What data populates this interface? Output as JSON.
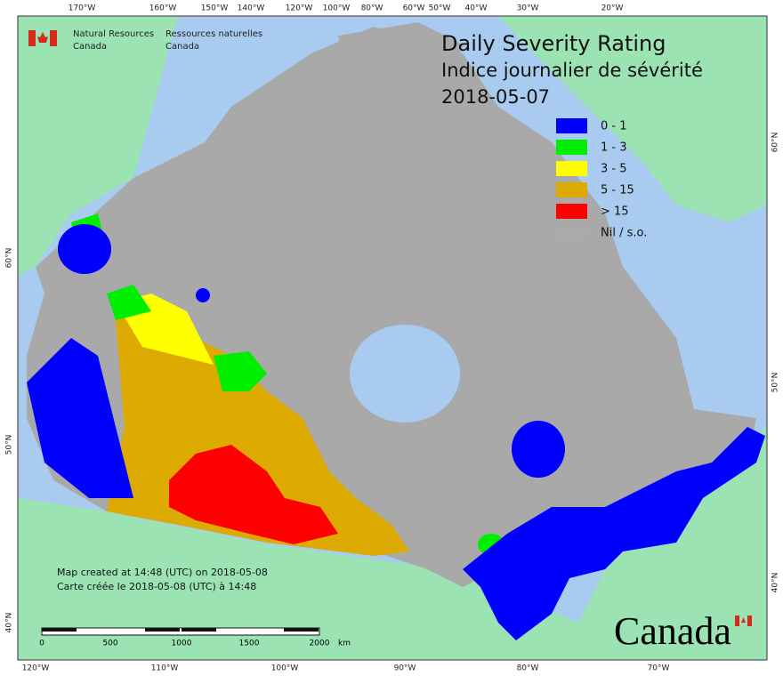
{
  "header": {
    "agency_en": [
      "Natural Resources",
      "Canada"
    ],
    "agency_fr": [
      "Ressources naturelles",
      "Canada"
    ]
  },
  "title": [
    "Daily Severity Rating",
    "Indice journalier de sévérité",
    "2018-05-07"
  ],
  "legend": [
    {
      "label": "0 - 1",
      "color": "#0000ff"
    },
    {
      "label": "1 - 3",
      "color": "#00ee00"
    },
    {
      "label": "3 - 5",
      "color": "#ffff00"
    },
    {
      "label": "5 - 15",
      "color": "#dcaa00"
    },
    {
      "label": "> 15",
      "color": "#ff0000"
    },
    {
      "label": "Nil / s.o.",
      "color": "#aaaaaa"
    }
  ],
  "footnote": [
    "Map created at 14:48 (UTC) on 2018-05-08",
    "Carte créée le 2018-05-08 (UTC) à 14:48"
  ],
  "scale_bar": {
    "ticks": [
      0,
      500,
      1000,
      1500,
      2000
    ],
    "unit": "km"
  },
  "graticule": {
    "top": [
      "170°W",
      "160°W",
      "150°W",
      "140°W",
      "120°W",
      "100°W",
      "80°W",
      "60°W",
      "50°W",
      "40°W",
      "30°W",
      "20°W"
    ],
    "bottom": [
      "120°W",
      "110°W",
      "100°W",
      "90°W",
      "80°W",
      "70°W"
    ],
    "left": [
      "60°N",
      "50°N",
      "40°N"
    ],
    "right": [
      "60°N",
      "50°N",
      "40°N"
    ]
  },
  "wordmark": "Canada"
}
